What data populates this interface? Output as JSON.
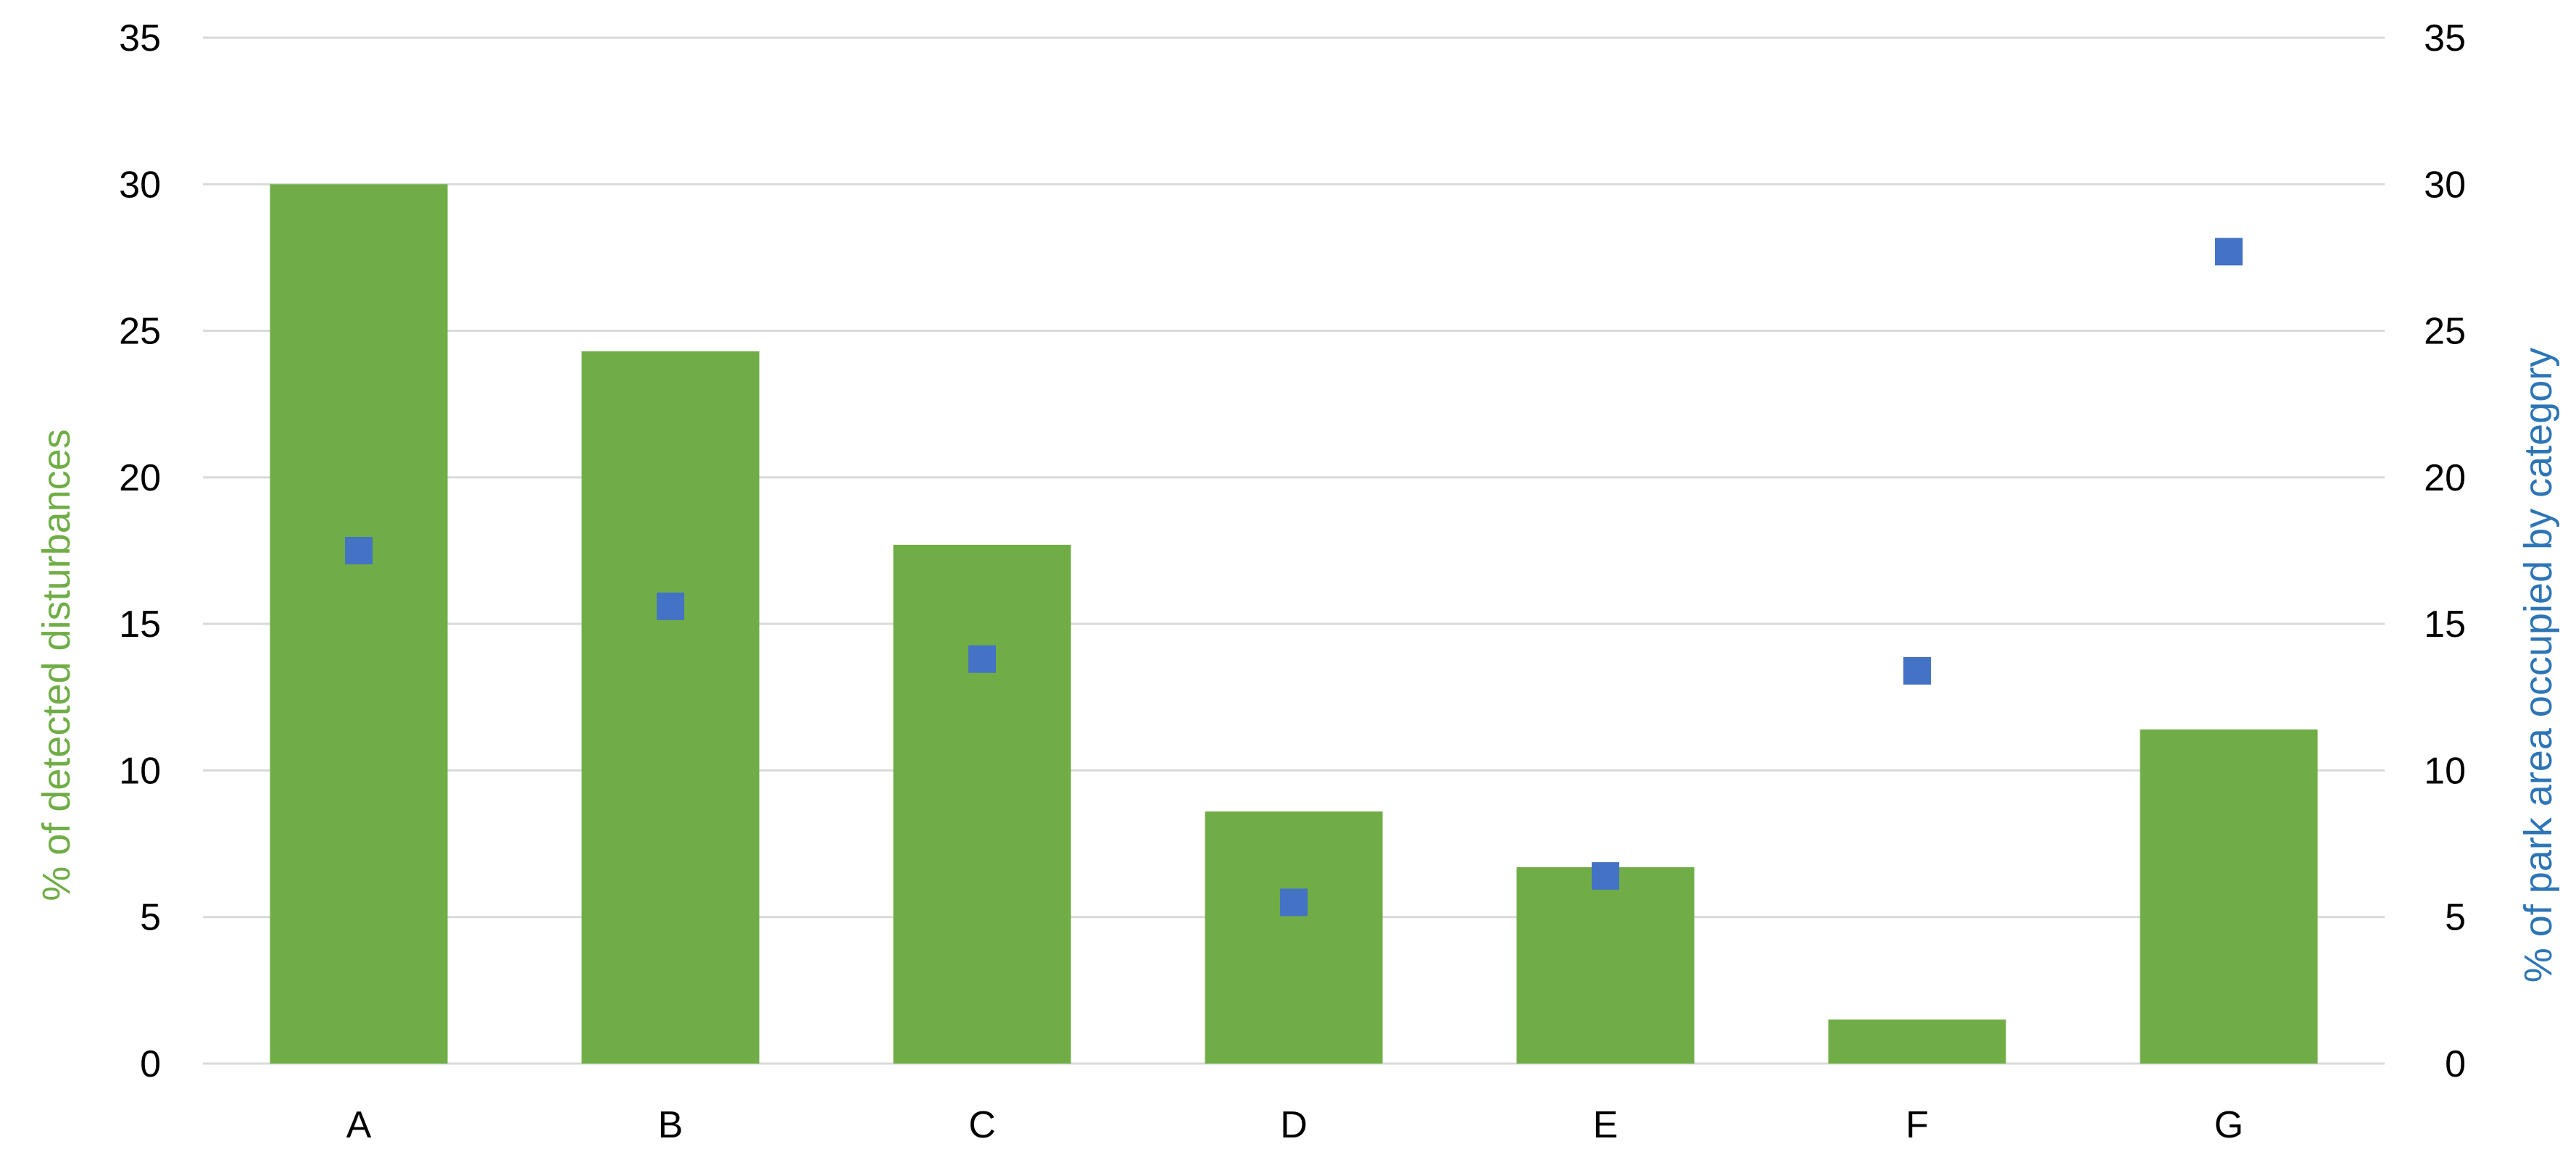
{
  "chart_data": {
    "type": "bar",
    "title": "",
    "categories": [
      "A",
      "B",
      "C",
      "D",
      "E",
      "F",
      "G"
    ],
    "series": [
      {
        "name": "% of detected disturbances",
        "type": "bar",
        "axis": "left",
        "color": "#70AD47",
        "values": [
          30.0,
          24.3,
          17.7,
          8.6,
          6.7,
          1.5,
          11.4
        ]
      },
      {
        "name": "% of park area occupied by category",
        "type": "scatter",
        "axis": "right",
        "color": "#4472C4",
        "marker": "square",
        "values": [
          17.5,
          15.6,
          13.8,
          5.5,
          6.4,
          13.4,
          27.7
        ]
      }
    ],
    "ylabel": "% of detected disturbances",
    "ylabel_color": "#70AD47",
    "y2label": "% of park area occupied by category",
    "y2label_color": "#2E75B6",
    "ylim": [
      0,
      35
    ],
    "y2lim": [
      0,
      35
    ],
    "yticks": [
      0,
      5,
      10,
      15,
      20,
      25,
      30,
      35
    ],
    "y2ticks": [
      0,
      5,
      10,
      15,
      20,
      25,
      30,
      35
    ],
    "gridlines": true,
    "gridline_color": "#D9D9D9",
    "legend": "none"
  }
}
